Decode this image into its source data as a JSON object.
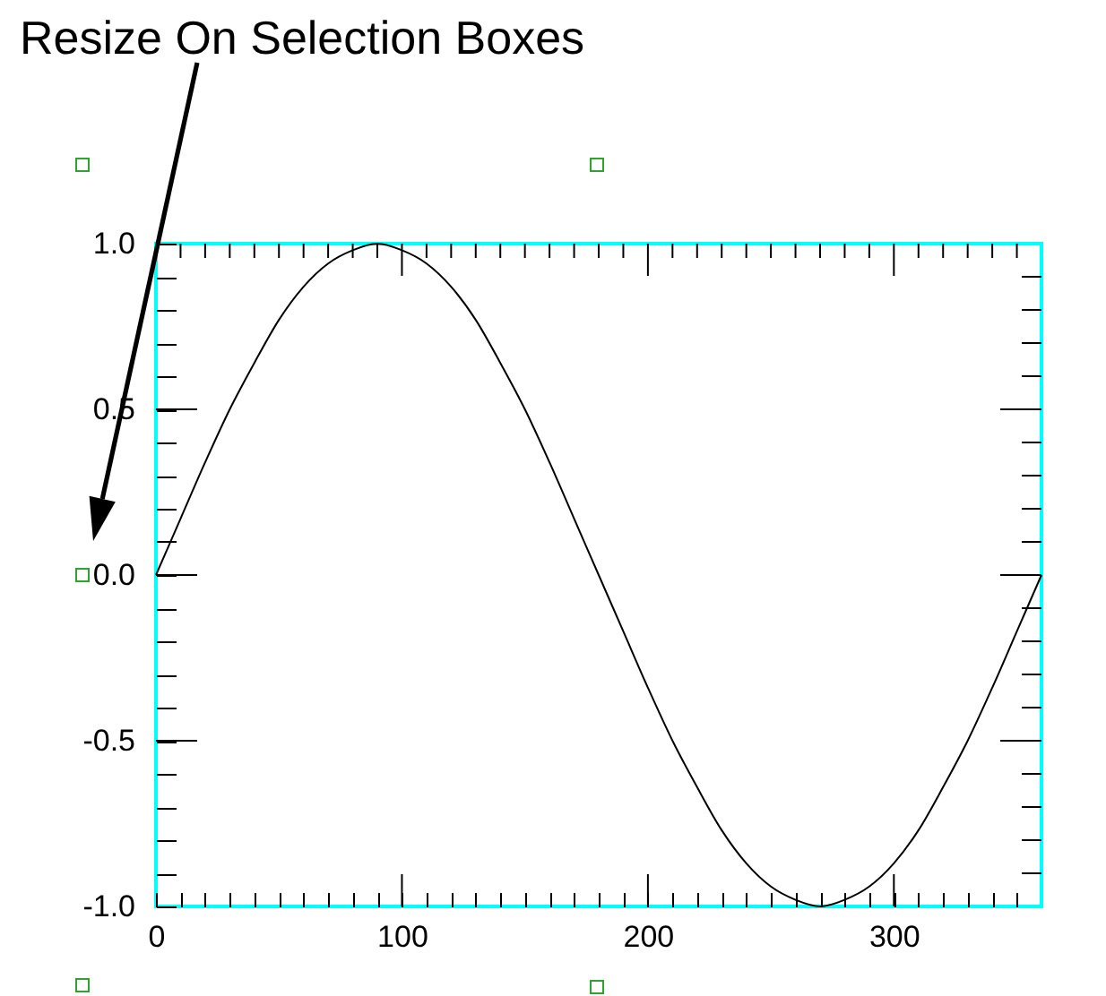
{
  "chart_data": {
    "type": "line",
    "annotations": [
      "Resize On Selection Boxes"
    ],
    "x": [
      0,
      10,
      20,
      30,
      40,
      50,
      60,
      70,
      80,
      90,
      100,
      110,
      120,
      130,
      140,
      150,
      160,
      170,
      180,
      190,
      200,
      210,
      220,
      230,
      240,
      250,
      260,
      270,
      280,
      290,
      300,
      310,
      320,
      330,
      340,
      350,
      360
    ],
    "series": [
      {
        "color": "#000000",
        "values": [
          0,
          0.17,
          0.34,
          0.5,
          0.64,
          0.77,
          0.87,
          0.94,
          0.98,
          1,
          0.98,
          0.94,
          0.87,
          0.77,
          0.64,
          0.5,
          0.34,
          0.17,
          0,
          -0.17,
          -0.34,
          -0.5,
          -0.64,
          -0.77,
          -0.87,
          -0.94,
          -0.98,
          -1,
          -0.98,
          -0.94,
          -0.87,
          -0.77,
          -0.64,
          -0.5,
          -0.34,
          -0.17,
          0
        ]
      }
    ],
    "xlim": [
      0,
      360
    ],
    "ylim": [
      -1,
      1
    ],
    "xticks": [
      0,
      {
        "value": 10,
        "label": null
      },
      {
        "value": 20,
        "label": null
      },
      {
        "value": 30,
        "label": null
      },
      {
        "value": 40,
        "label": null
      },
      {
        "value": 50,
        "label": null
      },
      {
        "value": 60,
        "label": null
      },
      {
        "value": 70,
        "label": null
      },
      {
        "value": 80,
        "label": null
      },
      {
        "value": 90,
        "label": null
      },
      100,
      {
        "value": 110,
        "label": null
      },
      {
        "value": 120,
        "label": null
      },
      {
        "value": 130,
        "label": null
      },
      {
        "value": 140,
        "label": null
      },
      {
        "value": 150,
        "label": null
      },
      {
        "value": 160,
        "label": null
      },
      {
        "value": 170,
        "label": null
      },
      {
        "value": 180,
        "label": null
      },
      {
        "value": 190,
        "label": null
      },
      200,
      {
        "value": 210,
        "label": null
      },
      {
        "value": 220,
        "label": null
      },
      {
        "value": 230,
        "label": null
      },
      {
        "value": 240,
        "label": null
      },
      {
        "value": 250,
        "label": null
      },
      {
        "value": 260,
        "label": null
      },
      {
        "value": 270,
        "label": null
      },
      {
        "value": 280,
        "label": null
      },
      {
        "value": 290,
        "label": null
      },
      300,
      {
        "value": 310,
        "label": null
      },
      {
        "value": 320,
        "label": null
      },
      {
        "value": 330,
        "label": null
      },
      {
        "value": 340,
        "label": null
      },
      {
        "value": 350,
        "label": null
      }
    ],
    "yticks": [
      {
        "value": -1,
        "label": "-1.0"
      },
      {
        "value": -0.9,
        "label": null
      },
      {
        "value": -0.8,
        "label": null
      },
      {
        "value": -0.7,
        "label": null
      },
      {
        "value": -0.6,
        "label": null
      },
      -0.5,
      {
        "value": -0.4,
        "label": null
      },
      {
        "value": -0.3,
        "label": null
      },
      {
        "value": -0.2,
        "label": null
      },
      {
        "value": -0.1,
        "label": null
      },
      {
        "value": 0,
        "label": "0.0"
      },
      {
        "value": 0.1,
        "label": null
      },
      {
        "value": 0.2,
        "label": null
      },
      {
        "value": 0.3,
        "label": null
      },
      {
        "value": 0.4,
        "label": null
      },
      0.5,
      {
        "value": 0.6,
        "label": null
      },
      {
        "value": 0.7,
        "label": null
      },
      {
        "value": 0.8,
        "label": null
      },
      {
        "value": 0.9,
        "label": null
      },
      {
        "value": 1,
        "label": "1.0"
      }
    ]
  }
}
